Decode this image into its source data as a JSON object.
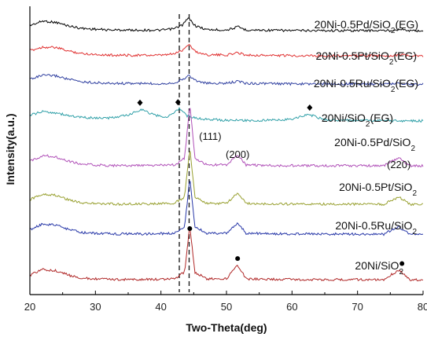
{
  "chart_data": {
    "type": "line",
    "xlabel": "Two-Theta(deg)",
    "ylabel": "Intensity(a.u.)",
    "xlim": [
      20,
      80
    ],
    "xticks": [
      20,
      30,
      40,
      50,
      60,
      70,
      80
    ],
    "grid": false,
    "reference_lines_x": [
      42.8,
      44.3
    ],
    "series": [
      {
        "name": "20Ni-0.5Pd/SiO2(EG)",
        "color": "#000000",
        "points": [
          [
            20,
            0.2
          ],
          [
            22,
            0.35
          ],
          [
            24,
            0.3
          ],
          [
            26,
            0.18
          ],
          [
            28,
            0.1
          ],
          [
            32,
            0.05
          ],
          [
            40,
            0.04
          ],
          [
            42,
            0.09
          ],
          [
            43.3,
            0.22
          ],
          [
            44.2,
            0.45
          ],
          [
            45.3,
            0.18
          ],
          [
            47,
            0.06
          ],
          [
            50,
            0.05
          ],
          [
            51.8,
            0.15
          ],
          [
            53,
            0.05
          ],
          [
            60,
            0.03
          ],
          [
            75,
            0.03
          ],
          [
            76.5,
            0.08
          ],
          [
            78,
            0.02
          ],
          [
            80,
            0.02
          ]
        ]
      },
      {
        "name": "20Ni-0.5Pt/SiO2(EG)",
        "color": "#e03030",
        "points": [
          [
            20,
            0.2
          ],
          [
            22,
            0.32
          ],
          [
            24,
            0.3
          ],
          [
            26,
            0.18
          ],
          [
            28,
            0.1
          ],
          [
            32,
            0.05
          ],
          [
            40,
            0.04
          ],
          [
            42,
            0.09
          ],
          [
            43.3,
            0.22
          ],
          [
            44.2,
            0.42
          ],
          [
            45.3,
            0.16
          ],
          [
            47,
            0.06
          ],
          [
            50,
            0.05
          ],
          [
            51.8,
            0.13
          ],
          [
            53,
            0.05
          ],
          [
            60,
            0.03
          ],
          [
            75,
            0.03
          ],
          [
            76.5,
            0.06
          ],
          [
            78,
            0.02
          ],
          [
            80,
            0.02
          ]
        ]
      },
      {
        "name": "20Ni-0.5Ru/SiO2(EG)",
        "color": "#3040a0",
        "points": [
          [
            20,
            0.2
          ],
          [
            22,
            0.32
          ],
          [
            24,
            0.3
          ],
          [
            26,
            0.18
          ],
          [
            28,
            0.1
          ],
          [
            32,
            0.05
          ],
          [
            40,
            0.04
          ],
          [
            42,
            0.07
          ],
          [
            43.5,
            0.2
          ],
          [
            44.3,
            0.32
          ],
          [
            45.3,
            0.14
          ],
          [
            47,
            0.05
          ],
          [
            50,
            0.05
          ],
          [
            51.8,
            0.12
          ],
          [
            53,
            0.05
          ],
          [
            60,
            0.03
          ],
          [
            75,
            0.03
          ],
          [
            76.5,
            0.06
          ],
          [
            78,
            0.02
          ],
          [
            80,
            0.02
          ]
        ]
      },
      {
        "name": "20Ni/SiO2(EG)",
        "color": "#30a0a8",
        "points": [
          [
            20,
            0.22
          ],
          [
            22,
            0.34
          ],
          [
            24,
            0.3
          ],
          [
            26,
            0.2
          ],
          [
            28,
            0.14
          ],
          [
            32,
            0.12
          ],
          [
            35,
            0.22
          ],
          [
            37,
            0.42
          ],
          [
            39,
            0.22
          ],
          [
            41,
            0.15
          ],
          [
            42.8,
            0.45
          ],
          [
            44,
            0.2
          ],
          [
            46,
            0.1
          ],
          [
            50,
            0.05
          ],
          [
            55,
            0.04
          ],
          [
            60,
            0.08
          ],
          [
            62.5,
            0.25
          ],
          [
            65,
            0.07
          ],
          [
            70,
            0.04
          ],
          [
            80,
            0.03
          ]
        ]
      },
      {
        "name": "20Ni-0.5Pd/SiO2",
        "color": "#b050b8",
        "points": [
          [
            20,
            0.2
          ],
          [
            22,
            0.4
          ],
          [
            24,
            0.35
          ],
          [
            26,
            0.2
          ],
          [
            28,
            0.1
          ],
          [
            32,
            0.06
          ],
          [
            38,
            0.06
          ],
          [
            42,
            0.08
          ],
          [
            43.6,
            0.3
          ],
          [
            44.4,
            2.1
          ],
          [
            45.2,
            0.3
          ],
          [
            47,
            0.08
          ],
          [
            50,
            0.08
          ],
          [
            51.7,
            0.42
          ],
          [
            53,
            0.08
          ],
          [
            58,
            0.06
          ],
          [
            74,
            0.05
          ],
          [
            76.3,
            0.32
          ],
          [
            78,
            0.05
          ],
          [
            80,
            0.05
          ]
        ]
      },
      {
        "name": "20Ni-0.5Pt/SiO2",
        "color": "#98a030",
        "points": [
          [
            20,
            0.2
          ],
          [
            22,
            0.4
          ],
          [
            24,
            0.35
          ],
          [
            26,
            0.2
          ],
          [
            28,
            0.1
          ],
          [
            32,
            0.06
          ],
          [
            38,
            0.06
          ],
          [
            42,
            0.08
          ],
          [
            43.6,
            0.3
          ],
          [
            44.4,
            1.9
          ],
          [
            45.2,
            0.3
          ],
          [
            47,
            0.08
          ],
          [
            50,
            0.08
          ],
          [
            51.7,
            0.42
          ],
          [
            53,
            0.08
          ],
          [
            58,
            0.06
          ],
          [
            74,
            0.05
          ],
          [
            76.3,
            0.3
          ],
          [
            78,
            0.05
          ],
          [
            80,
            0.05
          ]
        ]
      },
      {
        "name": "20Ni-0.5Ru/SiO2",
        "color": "#2838a8",
        "points": [
          [
            20,
            0.2
          ],
          [
            22,
            0.4
          ],
          [
            24,
            0.35
          ],
          [
            26,
            0.2
          ],
          [
            28,
            0.1
          ],
          [
            32,
            0.06
          ],
          [
            38,
            0.06
          ],
          [
            42,
            0.08
          ],
          [
            43.6,
            0.3
          ],
          [
            44.4,
            1.9
          ],
          [
            45.2,
            0.3
          ],
          [
            47,
            0.08
          ],
          [
            50,
            0.08
          ],
          [
            51.7,
            0.42
          ],
          [
            53,
            0.08
          ],
          [
            58,
            0.06
          ],
          [
            74,
            0.05
          ],
          [
            76.3,
            0.3
          ],
          [
            78,
            0.05
          ],
          [
            80,
            0.05
          ]
        ]
      },
      {
        "name": "20Ni/SiO2",
        "color": "#b02828",
        "points": [
          [
            20,
            0.2
          ],
          [
            22,
            0.4
          ],
          [
            24,
            0.35
          ],
          [
            26,
            0.2
          ],
          [
            28,
            0.1
          ],
          [
            32,
            0.06
          ],
          [
            38,
            0.06
          ],
          [
            42,
            0.08
          ],
          [
            43.6,
            0.3
          ],
          [
            44.4,
            1.85
          ],
          [
            45.2,
            0.3
          ],
          [
            47,
            0.08
          ],
          [
            50,
            0.08
          ],
          [
            51.7,
            0.55
          ],
          [
            53,
            0.08
          ],
          [
            58,
            0.06
          ],
          [
            74,
            0.05
          ],
          [
            76.3,
            0.38
          ],
          [
            78,
            0.05
          ],
          [
            80,
            0.05
          ]
        ]
      }
    ],
    "annotations": {
      "peak_labels": [
        {
          "text": "(111)",
          "x": 44.4
        },
        {
          "text": "(200)",
          "x": 51.7
        },
        {
          "text": "(220)",
          "x": 76.3
        }
      ],
      "diamond_markers": [
        {
          "x": 36.8,
          "series": "20Ni/SiO2(EG)"
        },
        {
          "x": 42.6,
          "series": "20Ni/SiO2(EG)"
        },
        {
          "x": 62.7,
          "series": "20Ni/SiO2(EG)"
        }
      ],
      "circle_markers": [
        {
          "x": 44.4,
          "series": "20Ni/SiO2"
        },
        {
          "x": 51.7,
          "series": "20Ni/SiO2"
        },
        {
          "x": 76.3,
          "series": "20Ni/SiO2"
        }
      ]
    }
  }
}
